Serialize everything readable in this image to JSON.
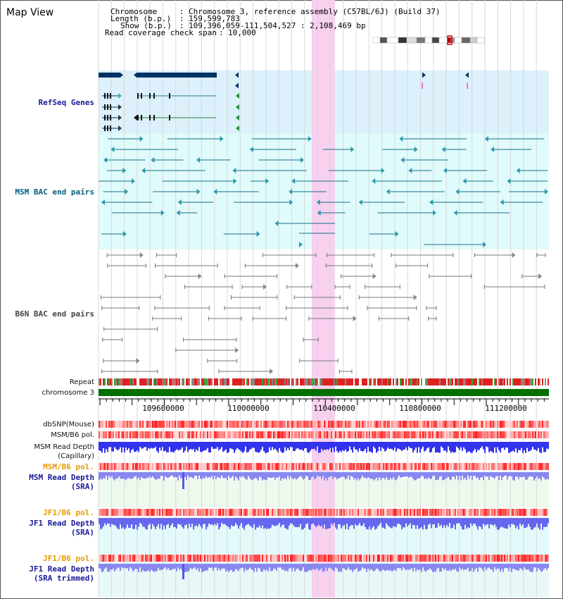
{
  "title": "Map View",
  "info": {
    "chromosome_label": "Chromosome",
    "chromosome_value": "Chromosome 3, reference assembly (C57BL/6J) (Build 37)",
    "length_label": "Length (b.p.)",
    "length_value": "159,599,783",
    "show_label": "Show (b.p.)",
    "show_value": "109,396,059-111,504,527 : 2,108,469 bp",
    "coverage_label": "Read coverage check span",
    "coverage_value": "10,000"
  },
  "tracks": {
    "refseq": "RefSeq Genes",
    "msm_bac": "MSM BAC end pairs",
    "b6n_bac": "B6N BAC end pairs",
    "repeat": "Repeat",
    "chromosome": "chromosome 3",
    "dbsnp": "dbSNP(Mouse)",
    "msm_b6_pol": "MSM/B6 pol.",
    "msm_read_depth_cap_1": "MSM Read Depth",
    "msm_read_depth_cap_2": "(Capillary)",
    "msm_b6_pol_sra": "MSM/B6 pol.",
    "msm_read_depth_sra_1": "MSM Read Depth",
    "msm_read_depth_sra_2": "(SRA)",
    "jf1_b6_pol": "JF1/B6 pol.",
    "jf1_read_depth_1": "JF1 Read Depth",
    "jf1_read_depth_2": "(SRA)",
    "jf1_b6_pol_trim": "JF1/B6 pol.",
    "jf1_read_depth_trim_1": "JF1 Read Depth",
    "jf1_read_depth_trim_2": "(SRA trimmed)"
  },
  "ruler": {
    "ticks": [
      "109600000",
      "110000000",
      "110400000",
      "110800000",
      "111200000"
    ]
  },
  "colors": {
    "refseq_bg": "#dcf1fb",
    "msm_bg": "#e0fbfb",
    "highlight": "#f8d0f0",
    "gene": "#003366",
    "bac": "#1a6e8a",
    "b6n": "#777777",
    "chromosome": "#007000",
    "depth_blue": "#3333ee",
    "depth_light": "#8888f0"
  }
}
